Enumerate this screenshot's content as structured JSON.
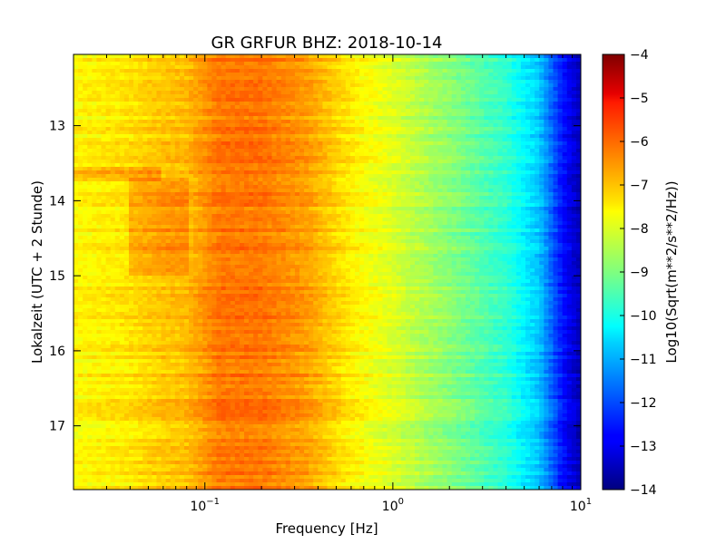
{
  "chart_data": {
    "type": "heatmap",
    "title": "GR GRFUR BHZ: 2018-10-14",
    "xlabel": "Frequency [Hz]",
    "ylabel": "Lokalzeit (UTC + 2 Stunde)",
    "x_scale": "log",
    "xlim": [
      0.02,
      10
    ],
    "x_ticks": [
      {
        "value": 0.1,
        "base": "10",
        "exp": "−1"
      },
      {
        "value": 1,
        "base": "10",
        "exp": "0"
      },
      {
        "value": 10,
        "base": "10",
        "exp": "1"
      }
    ],
    "ylim": [
      12.05,
      17.85
    ],
    "y_inverted": true,
    "y_ticks": [
      "13",
      "14",
      "15",
      "16",
      "17"
    ],
    "colorbar": {
      "label": "Log10(Sqrt(m**2/s**2/Hz))",
      "clim": [
        -14,
        -4
      ],
      "ticks": [
        "−4",
        "−5",
        "−6",
        "−7",
        "−8",
        "−9",
        "−10",
        "−11",
        "−12",
        "−13",
        "−14"
      ],
      "colormap": "jet"
    },
    "spectrum_profile": {
      "frequency_hz": [
        0.02,
        0.04,
        0.06,
        0.08,
        0.12,
        0.2,
        0.35,
        0.6,
        1.0,
        2.0,
        4.0,
        6.0,
        8.0,
        10.0
      ],
      "log10_amplitude": [
        -7.7,
        -7.5,
        -7.2,
        -7.1,
        -6.4,
        -6.4,
        -6.8,
        -7.6,
        -8.1,
        -8.9,
        -9.8,
        -10.8,
        -12.6,
        -13.5
      ]
    },
    "anomalies": [
      {
        "time_start": 13.55,
        "time_end": 13.75,
        "f_min": 0.02,
        "f_max": 0.06,
        "delta": 0.6
      },
      {
        "time_start": 13.7,
        "time_end": 15.0,
        "f_min": 0.04,
        "f_max": 0.08,
        "delta": 0.5
      }
    ]
  }
}
